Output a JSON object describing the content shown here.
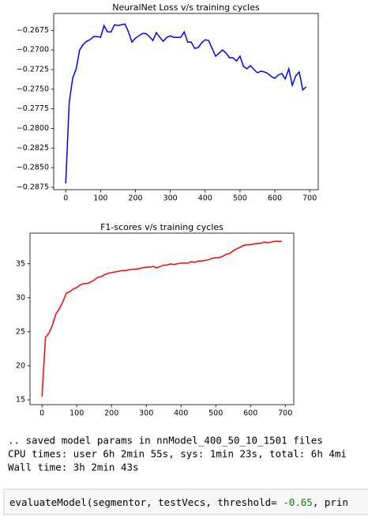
{
  "chart_data": [
    {
      "type": "line",
      "title": "NeuralNet Loss v/s training cycles",
      "x": [
        0,
        10,
        20,
        30,
        40,
        50,
        60,
        70,
        80,
        90,
        100,
        110,
        120,
        130,
        140,
        150,
        160,
        170,
        180,
        190,
        200,
        210,
        220,
        230,
        240,
        250,
        260,
        270,
        280,
        290,
        300,
        310,
        320,
        330,
        340,
        350,
        360,
        370,
        380,
        390,
        400,
        410,
        420,
        430,
        440,
        450,
        460,
        470,
        480,
        490,
        500,
        510,
        520,
        530,
        540,
        550,
        560,
        570,
        580,
        590,
        600,
        610,
        620,
        630,
        640,
        650,
        660,
        670,
        680,
        690
      ],
      "series": [
        {
          "color": "#0000ff",
          "values": [
            -0.287,
            -0.2767,
            -0.2736,
            -0.2724,
            -0.27,
            -0.2693,
            -0.2689,
            -0.2687,
            -0.2683,
            -0.2683,
            -0.2684,
            -0.2669,
            -0.2677,
            -0.2677,
            -0.2668,
            -0.2669,
            -0.2668,
            -0.2667,
            -0.2677,
            -0.269,
            -0.2685,
            -0.2682,
            -0.2679,
            -0.2679,
            -0.2683,
            -0.2688,
            -0.2678,
            -0.2684,
            -0.2689,
            -0.2684,
            -0.2682,
            -0.2684,
            -0.2684,
            -0.2684,
            -0.2677,
            -0.269,
            -0.269,
            -0.2698,
            -0.2697,
            -0.2691,
            -0.2687,
            -0.2688,
            -0.2698,
            -0.2708,
            -0.2704,
            -0.27,
            -0.2704,
            -0.271,
            -0.271,
            -0.2714,
            -0.2708,
            -0.2721,
            -0.2724,
            -0.272,
            -0.2725,
            -0.2729,
            -0.2727,
            -0.2728,
            -0.273,
            -0.2734,
            -0.2736,
            -0.2732,
            -0.273,
            -0.2737,
            -0.2724,
            -0.2745,
            -0.2733,
            -0.2728,
            -0.2751,
            -0.2747
          ]
        }
      ],
      "xlim": [
        -34.5,
        724.5
      ],
      "xticks": [
        0,
        100,
        200,
        300,
        400,
        500,
        600,
        700
      ],
      "ylim": [
        -0.2878,
        -0.26535
      ],
      "yticks": [
        {
          "value": -0.2675,
          "label": "−0.2675"
        },
        {
          "value": -0.27,
          "label": "−0.2700"
        },
        {
          "value": -0.2725,
          "label": "−0.2725"
        },
        {
          "value": -0.275,
          "label": "−0.2750"
        },
        {
          "value": -0.2775,
          "label": "−0.2775"
        },
        {
          "value": -0.28,
          "label": "−0.2800"
        },
        {
          "value": -0.2825,
          "label": "−0.2825"
        },
        {
          "value": -0.285,
          "label": "−0.2850"
        },
        {
          "value": -0.2875,
          "label": "−0.2875"
        }
      ]
    },
    {
      "type": "line",
      "title": "F1-scores v/s training cycles",
      "x": [
        0,
        10,
        20,
        30,
        40,
        50,
        60,
        70,
        80,
        90,
        100,
        110,
        120,
        130,
        140,
        150,
        160,
        170,
        180,
        190,
        200,
        210,
        220,
        230,
        240,
        250,
        260,
        270,
        280,
        290,
        300,
        310,
        320,
        330,
        340,
        350,
        360,
        370,
        380,
        390,
        400,
        410,
        420,
        430,
        440,
        450,
        460,
        470,
        480,
        490,
        500,
        510,
        520,
        530,
        540,
        550,
        560,
        570,
        580,
        590,
        600,
        610,
        620,
        630,
        640,
        650,
        660,
        670,
        680,
        690
      ],
      "series": [
        {
          "color": "#ff0000",
          "values": [
            15.5,
            24.2,
            24.8,
            26.0,
            27.6,
            28.4,
            29.4,
            30.7,
            30.9,
            31.3,
            31.5,
            31.9,
            32.1,
            32.1,
            32.3,
            32.6,
            33.0,
            33.1,
            33.4,
            33.6,
            33.7,
            33.8,
            33.9,
            34.0,
            34.0,
            34.1,
            34.2,
            34.2,
            34.3,
            34.4,
            34.5,
            34.5,
            34.6,
            34.4,
            34.6,
            34.8,
            34.8,
            35.0,
            34.9,
            35.0,
            35.1,
            35.1,
            35.1,
            35.3,
            35.2,
            35.4,
            35.4,
            35.5,
            35.6,
            35.8,
            35.9,
            35.9,
            36.1,
            36.4,
            36.5,
            36.9,
            37.2,
            37.4,
            37.7,
            37.8,
            37.8,
            37.9,
            38.0,
            38.0,
            38.2,
            38.1,
            38.2,
            38.3,
            38.3,
            38.3
          ]
        }
      ],
      "xlim": [
        -34.5,
        724.5
      ],
      "xticks": [
        0,
        100,
        200,
        300,
        400,
        500,
        600,
        700
      ],
      "ylim": [
        14.3,
        39.5
      ],
      "yticks": [
        15,
        20,
        25,
        30,
        35
      ]
    }
  ],
  "output": [
    ".. saved model params in nnModel_400_50_10_1501 files",
    "CPU times: user 6h 2min 55s, sys: 1min 23s, total: 6h 4mi",
    "Wall time: 3h 2min 43s"
  ],
  "code": [
    "evaluateModel(segmentor, testVecs, threshold= ",
    "-0.65",
    ", prin"
  ]
}
